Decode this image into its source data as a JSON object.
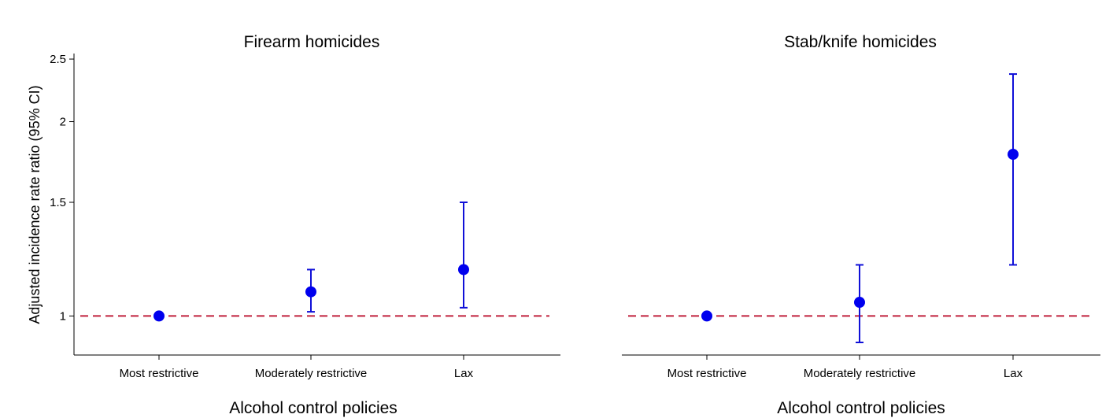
{
  "ylabel": "Adjusted incidence rate ratio (95% CI)",
  "chart_data": [
    {
      "type": "scatter",
      "title": "Firearm homicides",
      "xlabel": "Alcohol control policies",
      "categories": [
        "Most restrictive",
        "Moderately restrictive",
        "Lax"
      ],
      "estimate": [
        1.0,
        1.09,
        1.18
      ],
      "ci_lower": [
        1.0,
        1.015,
        1.03
      ],
      "ci_upper": [
        1.0,
        1.18,
        1.5
      ],
      "reference_line": 1,
      "yticks": [
        1,
        1.5,
        2,
        2.5
      ],
      "ylim": [
        0.87,
        2.55
      ],
      "ticks_text": [
        "1",
        "1.5",
        "2",
        "2.5"
      ]
    },
    {
      "type": "scatter",
      "title": "Stab/knife homicides",
      "xlabel": "Alcohol control policies",
      "categories": [
        "Most restrictive",
        "Moderately restrictive",
        "Lax"
      ],
      "estimate": [
        1.0,
        1.05,
        1.78
      ],
      "ci_lower": [
        1.0,
        0.91,
        1.2
      ],
      "ci_upper": [
        1.0,
        1.2,
        2.37
      ],
      "reference_line": 1,
      "yticks": [],
      "ylim": [
        0.87,
        2.55
      ],
      "ticks_text": []
    }
  ],
  "colors": {
    "point": "#0000ee",
    "ci": "#1010d8",
    "reference": "#c0203c"
  }
}
